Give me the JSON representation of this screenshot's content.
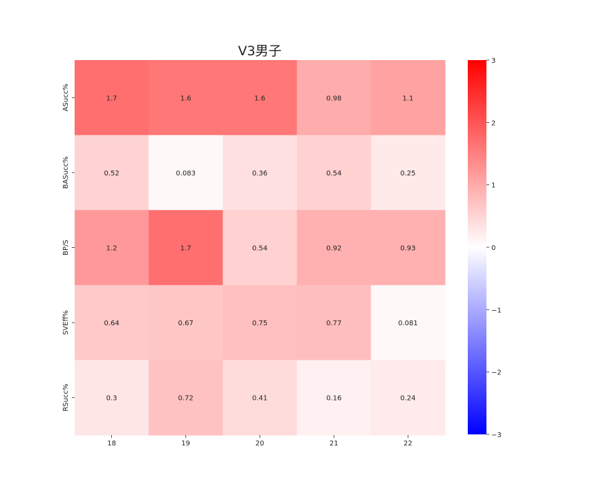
{
  "chart_data": {
    "type": "heatmap",
    "title": "V3男子",
    "xlabel": "",
    "ylabel": "",
    "x_categories": [
      "18",
      "19",
      "20",
      "21",
      "22"
    ],
    "y_categories": [
      "ASucc%",
      "BASucc%",
      "BP/S",
      "SVEff%",
      "RSucc%"
    ],
    "values": [
      [
        1.7,
        1.6,
        1.6,
        0.98,
        1.1
      ],
      [
        0.52,
        0.083,
        0.36,
        0.54,
        0.25
      ],
      [
        1.2,
        1.7,
        0.54,
        0.92,
        0.93
      ],
      [
        0.64,
        0.67,
        0.75,
        0.77,
        0.081
      ],
      [
        0.3,
        0.72,
        0.41,
        0.16,
        0.24
      ]
    ],
    "cell_labels": [
      [
        "1.7",
        "1.6",
        "1.6",
        "0.98",
        "1.1"
      ],
      [
        "0.52",
        "0.083",
        "0.36",
        "0.54",
        "0.25"
      ],
      [
        "1.2",
        "1.7",
        "0.54",
        "0.92",
        "0.93"
      ],
      [
        "0.64",
        "0.67",
        "0.75",
        "0.77",
        "0.081"
      ],
      [
        "0.3",
        "0.72",
        "0.41",
        "0.16",
        "0.24"
      ]
    ],
    "colormap": "bwr",
    "vmin": -3,
    "vmax": 3,
    "colorbar_ticks": [
      3,
      2,
      1,
      0,
      -1,
      -2,
      -3
    ],
    "colorbar_tick_labels": [
      "3",
      "2",
      "1",
      "0",
      "−1",
      "−2",
      "−3"
    ],
    "colors": {
      "low": "#0000ff",
      "mid": "#ffffff",
      "high": "#ff0000"
    },
    "grid": false,
    "colorbar_position": "right"
  }
}
